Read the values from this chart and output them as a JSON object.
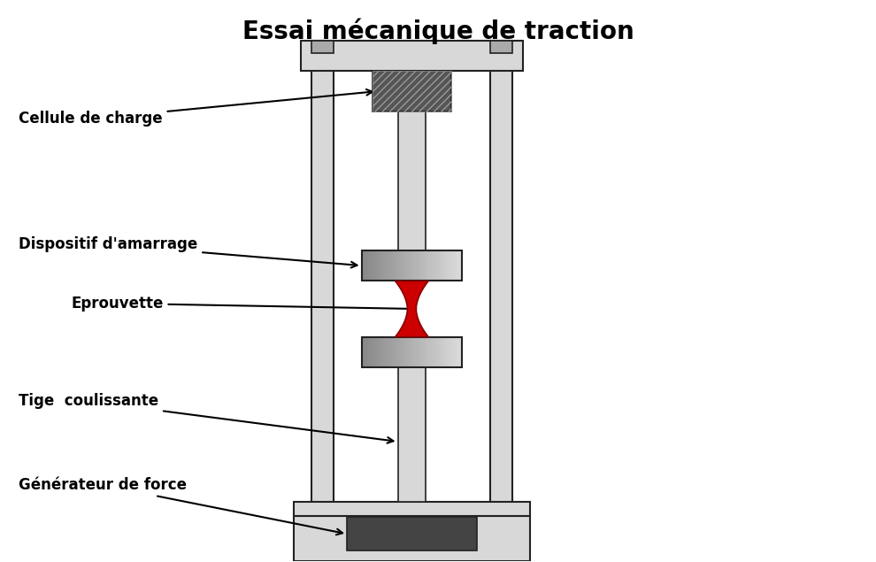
{
  "title": "Essai mécanique de traction",
  "title_fontsize": 20,
  "title_fontweight": "bold",
  "bg_color": "#ffffff",
  "frame_color": "#222222",
  "light_gray": "#d8d8d8",
  "mid_gray": "#aaaaaa",
  "dark_gray": "#555555",
  "darker_gray": "#444444",
  "red_color": "#cc0000",
  "labels": {
    "cellule": "Cellule de charge",
    "dispositif": "Dispositif d'amarrage",
    "eprouvette": "Eprouvette",
    "tige": "Tige  coulissante",
    "generateur": "Générateur de force"
  },
  "label_fontsize": 12,
  "label_fontweight": "bold"
}
